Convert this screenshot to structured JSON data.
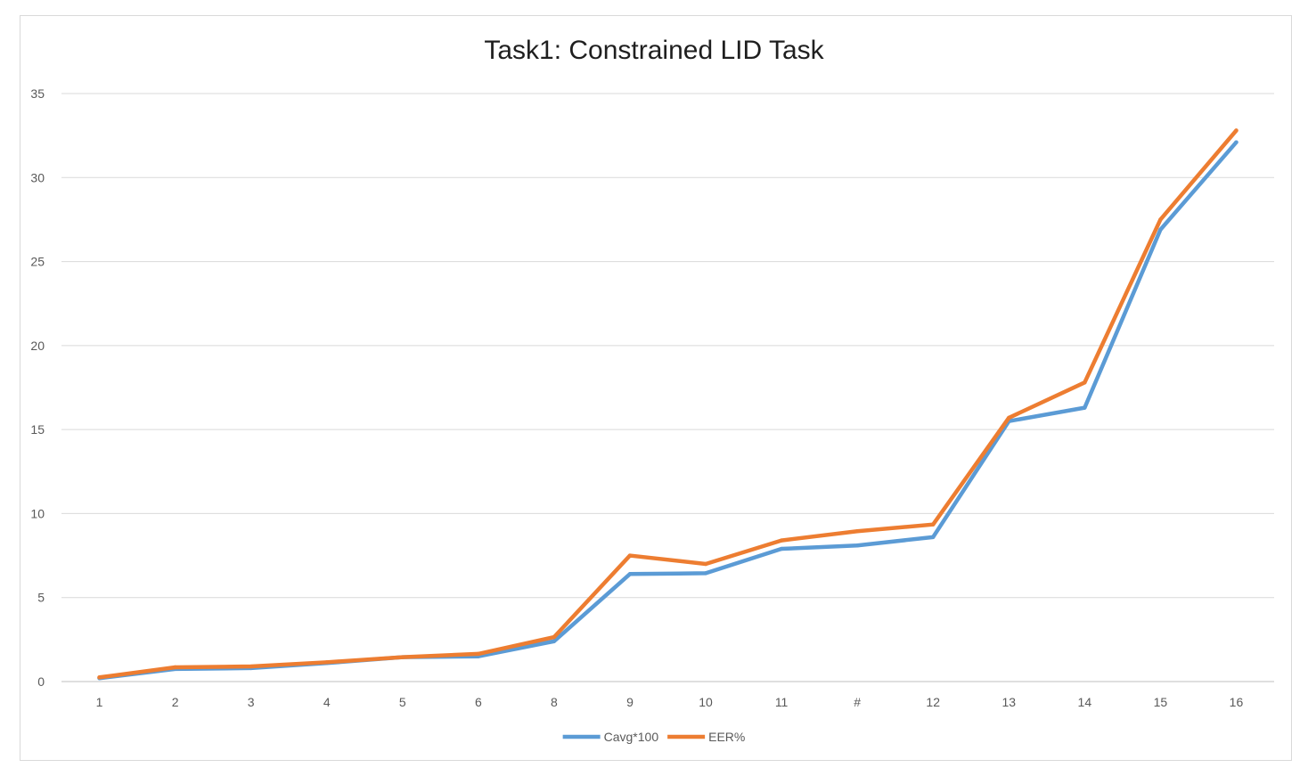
{
  "chart_data": {
    "type": "line",
    "title": "Task1: Constrained LID Task",
    "xlabel": "",
    "ylabel": "",
    "categories": [
      "1",
      "2",
      "3",
      "4",
      "5",
      "6",
      "8",
      "9",
      "10",
      "11",
      "#",
      "12",
      "13",
      "14",
      "15",
      "16"
    ],
    "ylim": [
      0,
      35
    ],
    "yticks": [
      0,
      5,
      10,
      15,
      20,
      25,
      30,
      35
    ],
    "grid": true,
    "legend_position": "bottom",
    "series": [
      {
        "name": "Cavg*100",
        "color": "#5b9bd5",
        "values": [
          0.2,
          0.75,
          0.8,
          1.1,
          1.45,
          1.5,
          2.4,
          6.4,
          6.45,
          7.9,
          8.1,
          8.6,
          15.5,
          16.3,
          26.9,
          32.1
        ]
      },
      {
        "name": "EER%",
        "color": "#ed7d31",
        "values": [
          0.25,
          0.85,
          0.9,
          1.15,
          1.45,
          1.65,
          2.65,
          7.5,
          7.0,
          8.4,
          8.95,
          9.35,
          15.7,
          17.8,
          27.5,
          32.8
        ]
      }
    ]
  }
}
